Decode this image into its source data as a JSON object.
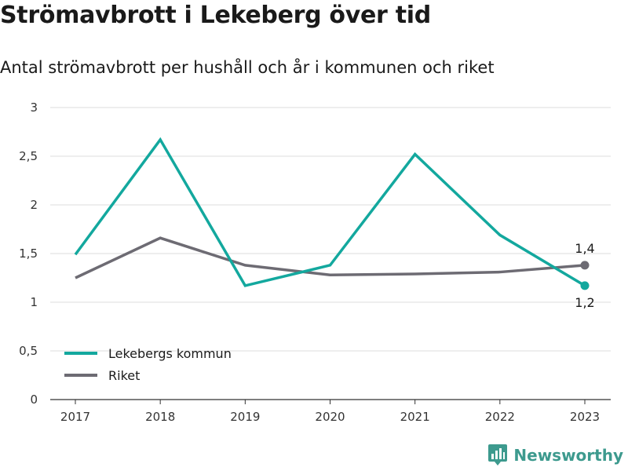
{
  "title": "Strömavbrott i Lekeberg över tid",
  "subtitle": "Antal strömavbrott per hushåll och år i kommunen och riket",
  "brand": {
    "name": "Newsworthy",
    "icon": "newsworthy-logo-icon",
    "color": "#3d9a8e"
  },
  "chart_data": {
    "type": "line",
    "x": [
      "2017",
      "2018",
      "2019",
      "2020",
      "2021",
      "2022",
      "2023"
    ],
    "ylim": [
      0,
      3
    ],
    "yticks": [
      0,
      0.5,
      1,
      1.5,
      2,
      2.5,
      3
    ],
    "ytick_labels": [
      "0",
      "0,5",
      "1",
      "1,5",
      "2",
      "2,5",
      "3"
    ],
    "grid": true,
    "legend_position": "bottom-left",
    "series": [
      {
        "name": "Lekebergs kommun",
        "color": "#13a89e",
        "values": [
          1.49,
          2.67,
          1.17,
          1.38,
          2.52,
          1.69,
          1.17
        ],
        "end_label": "1,2"
      },
      {
        "name": "Riket",
        "color": "#6d6b73",
        "values": [
          1.25,
          1.66,
          1.38,
          1.28,
          1.29,
          1.31,
          1.38
        ],
        "end_label": "1,4"
      }
    ]
  }
}
